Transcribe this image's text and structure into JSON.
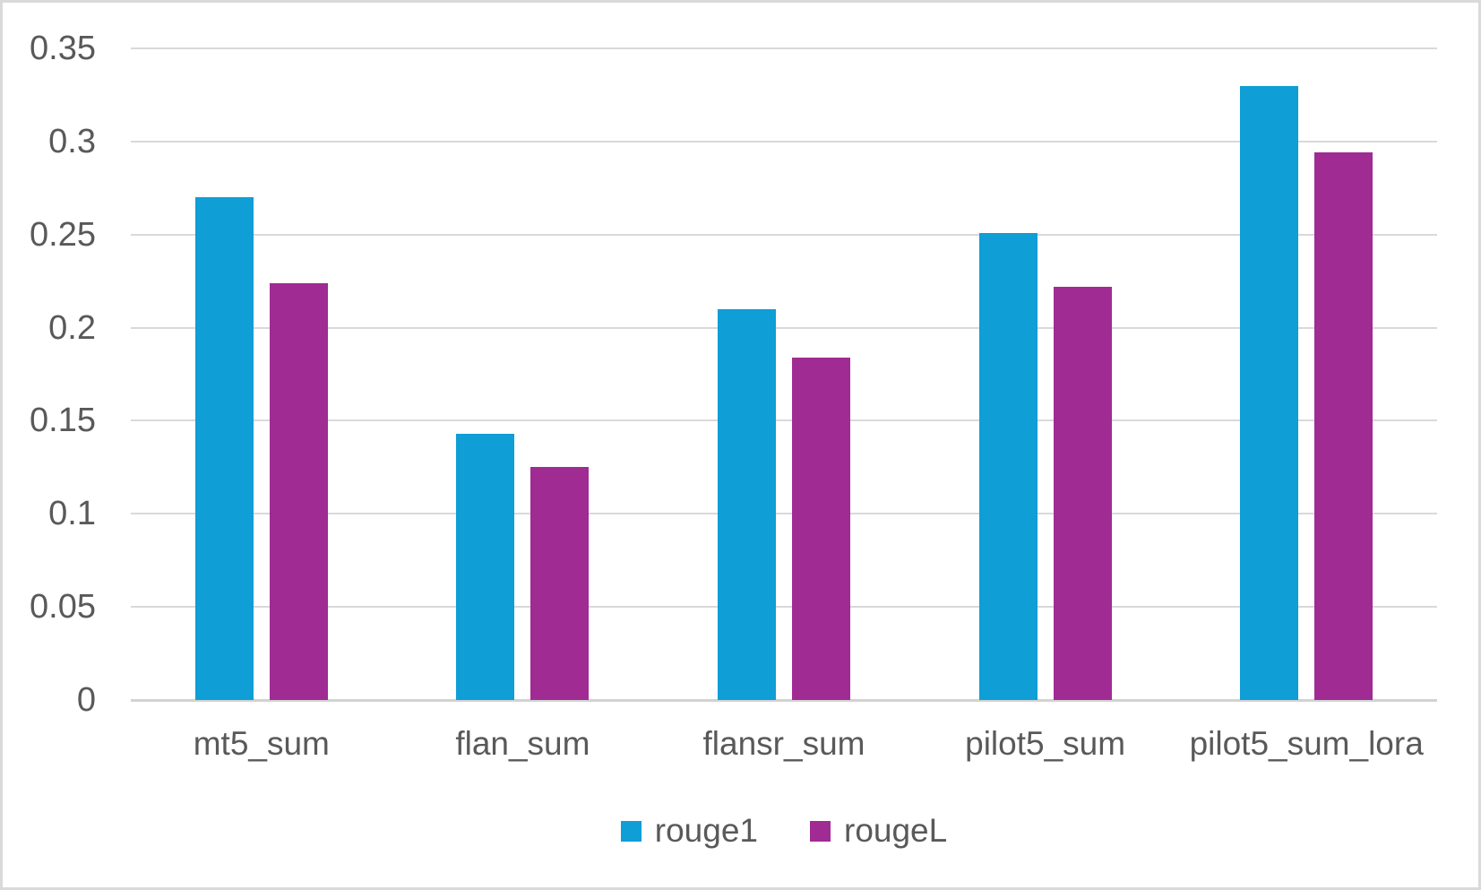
{
  "chart_data": {
    "type": "bar",
    "title": "",
    "categories": [
      "mt5_sum",
      "flan_sum",
      "flansr_sum",
      "pilot5_sum",
      "pilot5_sum_lora"
    ],
    "series": [
      {
        "name": "rouge1",
        "color": "#0F9ED5",
        "values": [
          0.27,
          0.143,
          0.21,
          0.251,
          0.33
        ]
      },
      {
        "name": "rougeL",
        "color": "#A02B93",
        "values": [
          0.224,
          0.125,
          0.184,
          0.222,
          0.294
        ]
      }
    ],
    "y_axis": {
      "min": 0,
      "max": 0.35,
      "step": 0.05,
      "ticks": [
        {
          "value": 0,
          "label": "0"
        },
        {
          "value": 0.05,
          "label": "0.05"
        },
        {
          "value": 0.1,
          "label": "0.1"
        },
        {
          "value": 0.15,
          "label": "0.15"
        },
        {
          "value": 0.2,
          "label": "0.2"
        },
        {
          "value": 0.25,
          "label": "0.25"
        },
        {
          "value": 0.3,
          "label": "0.3"
        },
        {
          "value": 0.35,
          "label": "0.35"
        }
      ]
    },
    "xlabel": "",
    "ylabel": "",
    "grid": true,
    "legend": {
      "position": "bottom",
      "entries": [
        {
          "label": "rouge1",
          "color": "#0F9ED5"
        },
        {
          "label": "rougeL",
          "color": "#A02B93"
        }
      ]
    },
    "colors": {
      "text": "#595959",
      "gridline": "#d9d9d9",
      "axis_line": "#d2d2d2",
      "background": "#ffffff",
      "frame_border": "#d9d9d9"
    }
  }
}
